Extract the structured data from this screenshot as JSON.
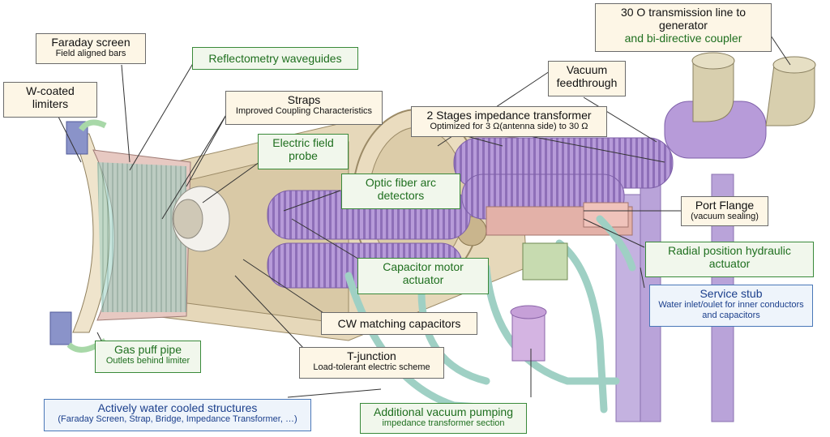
{
  "labels": {
    "faraday": {
      "title": "Faraday screen",
      "sub": "Field aligned bars"
    },
    "wcoated": {
      "title": "W-coated limiters"
    },
    "reflecto": {
      "title": "Reflectometry waveguides"
    },
    "straps": {
      "title": "Straps",
      "sub": "Improved Coupling Characteristics"
    },
    "efield": {
      "title": "Electric field probe"
    },
    "optic": {
      "title": "Optic fiber arc detectors"
    },
    "twostage": {
      "title": "2 Stages impedance transformer",
      "sub": "Optimized for 3 Ω(antenna side) to 30 Ω"
    },
    "vacfeed": {
      "title": "Vacuum feedthrough"
    },
    "tline": {
      "title": "30 O transmission line to generator",
      "sub": "and bi-directive coupler"
    },
    "portflange": {
      "title": "Port Flange",
      "sub": "(vacuum sealing)"
    },
    "radial": {
      "title": "Radial position hydraulic actuator"
    },
    "capmotor": {
      "title": "Capacitor motor actuator"
    },
    "service": {
      "title": "Service stub",
      "sub": "Water inlet/oulet for inner conductors and capacitors"
    },
    "cwmatch": {
      "title": "CW matching capacitors"
    },
    "tjunction": {
      "title": "T-junction",
      "sub": "Load-tolerant electric scheme"
    },
    "gaspuff": {
      "title": "Gas puff pipe",
      "sub": "Outlets behind limiter"
    },
    "water": {
      "title": "Actively water cooled structures",
      "sub": "(Faraday Screen, Strap, Bridge, Impedance Transformer, …)"
    },
    "pumping": {
      "title": "Additional vacuum pumping",
      "sub": "impedance transformer section"
    }
  },
  "colors": {
    "beige": "#e9dcc0",
    "violet": "#b89ad8",
    "teal": "#9fd0c4",
    "pink": "#e8b8b0",
    "green_text": "#1f6f1f",
    "blue_text": "#1b3f8c"
  }
}
